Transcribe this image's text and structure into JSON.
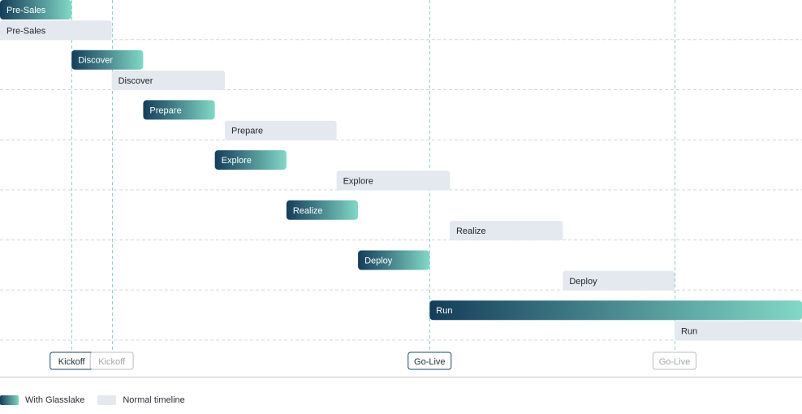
{
  "colors": {
    "glass_start": "#143d5a",
    "glass_end": "#82d8c6",
    "normal_bar": "#e4e8ef",
    "normal_text": "#1f242b",
    "glass_text": "#ffffff",
    "grid": "#d4d7dc",
    "vline": "#8fd1c9",
    "baseline": "#c7cbd1",
    "milestone_glass": "#1b4a63",
    "milestone_normal": "#b8bcc2"
  },
  "chart_data": {
    "type": "gantt",
    "x_unit": "weeks",
    "xlim": [
      0,
      56
    ],
    "series": [
      {
        "name": "With Glasslake",
        "key": "glass"
      },
      {
        "name": "Normal timeline",
        "key": "normal"
      }
    ],
    "phases": [
      {
        "label": "Pre-Sales",
        "glass": [
          0,
          5
        ],
        "normal": [
          0,
          7.8
        ]
      },
      {
        "label": "Discover",
        "glass": [
          5,
          10
        ],
        "normal": [
          7.8,
          15.7
        ]
      },
      {
        "label": "Prepare",
        "glass": [
          10,
          15
        ],
        "normal": [
          15.7,
          23.5
        ]
      },
      {
        "label": "Explore",
        "glass": [
          15,
          20
        ],
        "normal": [
          23.5,
          31.4
        ]
      },
      {
        "label": "Realize",
        "glass": [
          20,
          25
        ],
        "normal": [
          31.4,
          39.3
        ]
      },
      {
        "label": "Deploy",
        "glass": [
          25,
          30
        ],
        "normal": [
          39.3,
          47.1
        ]
      },
      {
        "label": "Run",
        "glass": [
          30,
          56
        ],
        "normal": [
          47.1,
          56
        ]
      }
    ],
    "milestones": [
      {
        "label": "Kickoff",
        "series": "glass",
        "x": 5
      },
      {
        "label": "Kickoff",
        "series": "normal",
        "x": 7.8
      },
      {
        "label": "Go-Live",
        "series": "glass",
        "x": 30
      },
      {
        "label": "Go-Live",
        "series": "normal",
        "x": 47.1
      }
    ]
  },
  "legend": {
    "glass_label": "With Glasslake",
    "normal_label": "Normal timeline"
  }
}
